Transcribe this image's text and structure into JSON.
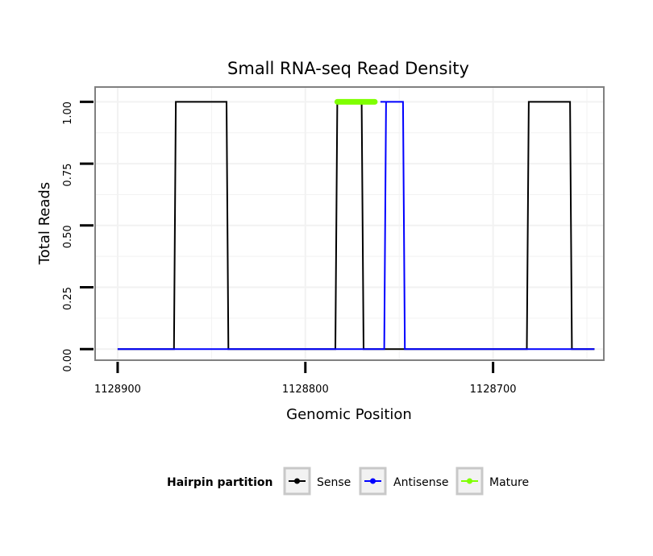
{
  "chart_data": {
    "type": "line",
    "title": "Small RNA-seq Read Density",
    "xlabel": "Genomic Position",
    "ylabel": "Total Reads",
    "x_reversed": true,
    "xlim": [
      1128912,
      1128641
    ],
    "ylim": [
      -0.045,
      1.06
    ],
    "x_ticks": [
      1128900,
      1128800,
      1128700
    ],
    "x_tick_labels": [
      "1128900",
      "1128800",
      "1128700"
    ],
    "y_ticks": [
      0.0,
      0.25,
      0.5,
      0.75,
      1.0
    ],
    "y_tick_labels": [
      "0.00",
      "0.25",
      "0.50",
      "0.75",
      "1.00"
    ],
    "legend": {
      "title": "Hairpin partition",
      "position": "bottom"
    },
    "series": [
      {
        "name": "Sense",
        "color": "#000000",
        "x": [
          1128900,
          1128870,
          1128869,
          1128842,
          1128841,
          1128784,
          1128783,
          1128770,
          1128769,
          1128682,
          1128681,
          1128659,
          1128658,
          1128646
        ],
        "y": [
          0,
          0,
          1,
          1,
          0,
          0,
          1,
          1,
          0,
          0,
          1,
          1,
          0,
          0
        ]
      },
      {
        "name": "Antisense",
        "color": "#0000ff",
        "x": [
          1128900,
          1128770,
          1128769,
          1128758,
          1128757,
          1128760,
          1128759,
          1128748,
          1128747,
          1128646
        ],
        "y": [
          0,
          0,
          0,
          0,
          1,
          1,
          1,
          1,
          0,
          0
        ]
      },
      {
        "name": "Mature",
        "color": "#7fff00",
        "x": [
          1128783,
          1128763
        ],
        "y": [
          1,
          1
        ]
      }
    ]
  }
}
